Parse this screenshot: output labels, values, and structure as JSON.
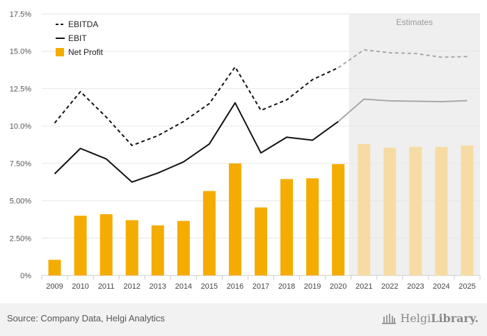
{
  "chart_data": {
    "type": "bar+line",
    "categories": [
      "2009",
      "2010",
      "2011",
      "2012",
      "2013",
      "2014",
      "2015",
      "2016",
      "2017",
      "2018",
      "2019",
      "2020",
      "2021",
      "2022",
      "2023",
      "2024",
      "2025"
    ],
    "estimates_from": "2021",
    "estimates_label": "Estimates",
    "ylim": [
      0,
      17.5
    ],
    "yticks": [
      0,
      2.5,
      5,
      7.5,
      10,
      12.5,
      15,
      17.5
    ],
    "ytick_labels": [
      "0%",
      "2.50%",
      "5.00%",
      "7.50%",
      "10.0%",
      "12.5%",
      "15.0%",
      "17.5%"
    ],
    "series": [
      {
        "name": "EBITDA",
        "type": "line",
        "style": "dashed",
        "values": [
          10.2,
          12.3,
          10.6,
          8.7,
          9.35,
          10.3,
          11.5,
          13.95,
          11.05,
          11.75,
          13.1,
          13.9,
          15.1,
          14.9,
          14.85,
          14.6,
          14.65
        ]
      },
      {
        "name": "EBIT",
        "type": "line",
        "style": "solid",
        "values": [
          6.8,
          8.5,
          7.8,
          6.25,
          6.85,
          7.6,
          8.8,
          11.55,
          8.2,
          9.25,
          9.05,
          10.3,
          11.8,
          11.68,
          11.66,
          11.63,
          11.7
        ]
      },
      {
        "name": "Net Profit",
        "type": "bar",
        "values": [
          1.05,
          4.0,
          4.1,
          3.7,
          3.35,
          3.65,
          5.65,
          7.5,
          4.55,
          6.45,
          6.5,
          7.45,
          8.8,
          8.55,
          8.6,
          8.6,
          8.7
        ]
      }
    ],
    "legend": [
      "EBITDA",
      "EBIT",
      "Net Profit"
    ],
    "legend_position": "top-left"
  },
  "colors": {
    "bar": "#f5ac00",
    "bar_estimate": "#f6dca4",
    "line_actual": "#111111",
    "line_estimate": "#a8a8a8",
    "estimate_bg": "#efefef",
    "grid": "#e6e6e6"
  },
  "footer": {
    "source": "Source: Company Data, Helgi Analytics",
    "brand_regular": "Helgi",
    "brand_bold": "Library.",
    "brand_icon": "library-building-icon"
  }
}
